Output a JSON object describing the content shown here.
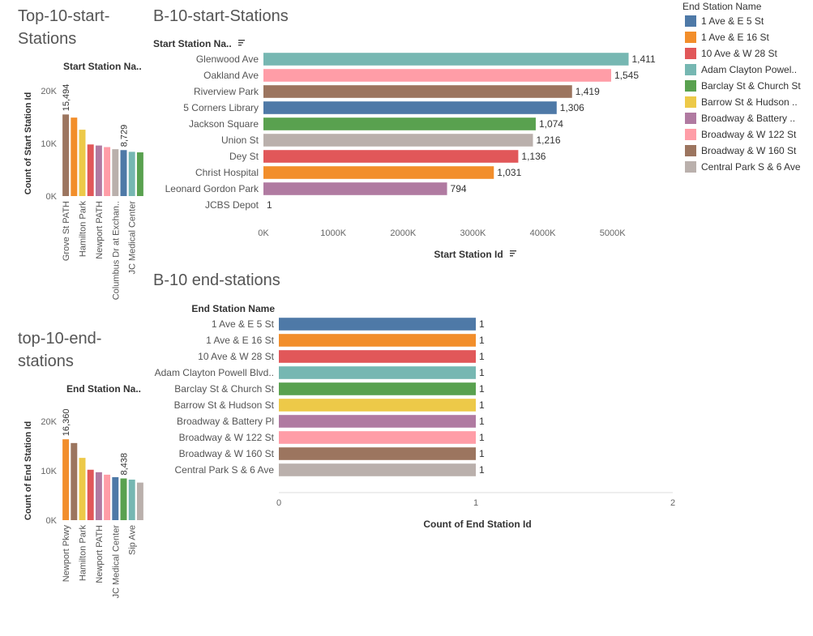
{
  "titles": {
    "top_start": "Top-10-start-\nStations",
    "b10_start": "B-10-start-Stations",
    "top_end": "top-10-end-\nstations",
    "b10_end": "B-10 end-stations"
  },
  "colors": {
    "blue": "#4e79a7",
    "orange": "#f28e2b",
    "red": "#e15759",
    "teal": "#76b7b2",
    "green": "#59a14f",
    "yellow": "#edc948",
    "purple": "#b07aa1",
    "pink": "#ff9da7",
    "brown": "#9c755f",
    "gray": "#bab0ac"
  },
  "legend": {
    "title": "End Station Name",
    "items": [
      {
        "label": "1 Ave & E 5 St",
        "color": "#4e79a7"
      },
      {
        "label": "1 Ave & E 16 St",
        "color": "#f28e2b"
      },
      {
        "label": "10 Ave & W 28 St",
        "color": "#e15759"
      },
      {
        "label": "Adam Clayton Powel..",
        "color": "#76b7b2"
      },
      {
        "label": "Barclay St & Church St",
        "color": "#59a14f"
      },
      {
        "label": "Barrow St & Hudson ..",
        "color": "#edc948"
      },
      {
        "label": "Broadway & Battery ..",
        "color": "#b07aa1"
      },
      {
        "label": "Broadway & W 122 St",
        "color": "#ff9da7"
      },
      {
        "label": "Broadway & W 160 St",
        "color": "#9c755f"
      },
      {
        "label": "Central Park S & 6 Ave",
        "color": "#bab0ac"
      }
    ]
  },
  "chart_data": [
    {
      "id": "top_start",
      "type": "bar",
      "header": "Start Station Na..",
      "ylabel": "Count of Start Station Id",
      "yticks": [
        "20K",
        "10K",
        "0K"
      ],
      "yticks_values": [
        20000,
        10000,
        0
      ],
      "ylim": [
        0,
        20000
      ],
      "categories": [
        "Grove St PATH",
        "",
        "Hamilton Park",
        "",
        "Newport PATH",
        "",
        "Columbus Dr at Exchan..",
        "",
        "JC Medical Center",
        ""
      ],
      "values": [
        15494,
        14900,
        12600,
        9800,
        9600,
        9300,
        8900,
        8729,
        8400,
        8300
      ],
      "colors": [
        "#9c755f",
        "#f28e2b",
        "#edc948",
        "#e15759",
        "#b07aa1",
        "#ff9da7",
        "#bab0ac",
        "#4e79a7",
        "#76b7b2",
        "#59a14f"
      ],
      "data_labels": [
        "15,494",
        "",
        "",
        "",
        "",
        "",
        "",
        "8,729",
        "",
        ""
      ]
    },
    {
      "id": "b10_start",
      "type": "bar",
      "orientation": "horizontal",
      "header": "Start Station Na..",
      "xlabel": "Start Station Id",
      "xticks": [
        "0K",
        "1000K",
        "2000K",
        "3000K",
        "4000K",
        "5000K"
      ],
      "xticks_values": [
        0,
        1000000,
        2000000,
        3000000,
        4000000,
        5000000
      ],
      "xlim": [
        0,
        5700000
      ],
      "categories": [
        "Glenwood Ave",
        "Oakland Ave",
        "Riverview Park",
        "5 Corners Library",
        "Jackson Square",
        "Union St",
        "Dey St",
        "Christ Hospital",
        "Leonard Gordon Park",
        "JCBS Depot"
      ],
      "values": [
        5230000,
        4980000,
        4420000,
        4200000,
        3900000,
        3860000,
        3650000,
        3300000,
        2630000,
        0
      ],
      "colors": [
        "#76b7b2",
        "#ff9da7",
        "#9c755f",
        "#4e79a7",
        "#59a14f",
        "#bab0ac",
        "#e15759",
        "#f28e2b",
        "#b07aa1",
        "#edc948"
      ],
      "data_labels": [
        "1,411",
        "1,545",
        "1,419",
        "1,306",
        "1,074",
        "1,216",
        "1,136",
        "1,031",
        "794",
        "1"
      ]
    },
    {
      "id": "top_end",
      "type": "bar",
      "header": "End Station Na..",
      "ylabel": "Count of End Station Id",
      "yticks": [
        "20K",
        "10K",
        "0K"
      ],
      "yticks_values": [
        20000,
        10000,
        0
      ],
      "ylim": [
        0,
        20000
      ],
      "categories": [
        "Newport Pkwy",
        "",
        "Hamilton Park",
        "",
        "Newport PATH",
        "",
        "JC Medical Center",
        "",
        "Sip Ave",
        ""
      ],
      "values": [
        16360,
        15600,
        12600,
        10200,
        9700,
        9200,
        8700,
        8438,
        8200,
        7600
      ],
      "colors": [
        "#f28e2b",
        "#9c755f",
        "#edc948",
        "#e15759",
        "#b07aa1",
        "#ff9da7",
        "#4e79a7",
        "#59a14f",
        "#76b7b2",
        "#bab0ac"
      ],
      "data_labels": [
        "16,360",
        "",
        "",
        "",
        "",
        "",
        "",
        "8,438",
        "",
        ""
      ]
    },
    {
      "id": "b10_end",
      "type": "bar",
      "orientation": "horizontal",
      "header": "End Station Name",
      "xlabel": "Count of End Station Id",
      "xticks": [
        "0",
        "1",
        "2"
      ],
      "xticks_values": [
        0,
        1,
        2
      ],
      "xlim": [
        0,
        2
      ],
      "categories": [
        "1 Ave & E 5 St",
        "1 Ave & E 16 St",
        "10 Ave & W 28 St",
        "Adam Clayton Powell Blvd..",
        "Barclay St & Church St",
        "Barrow St & Hudson St",
        "Broadway & Battery Pl",
        "Broadway & W 122 St",
        "Broadway & W 160 St",
        "Central Park S & 6 Ave"
      ],
      "values": [
        1,
        1,
        1,
        1,
        1,
        1,
        1,
        1,
        1,
        1
      ],
      "colors": [
        "#4e79a7",
        "#f28e2b",
        "#e15759",
        "#76b7b2",
        "#59a14f",
        "#edc948",
        "#b07aa1",
        "#ff9da7",
        "#9c755f",
        "#bab0ac"
      ],
      "data_labels": [
        "1",
        "1",
        "1",
        "1",
        "1",
        "1",
        "1",
        "1",
        "1",
        "1"
      ]
    }
  ]
}
